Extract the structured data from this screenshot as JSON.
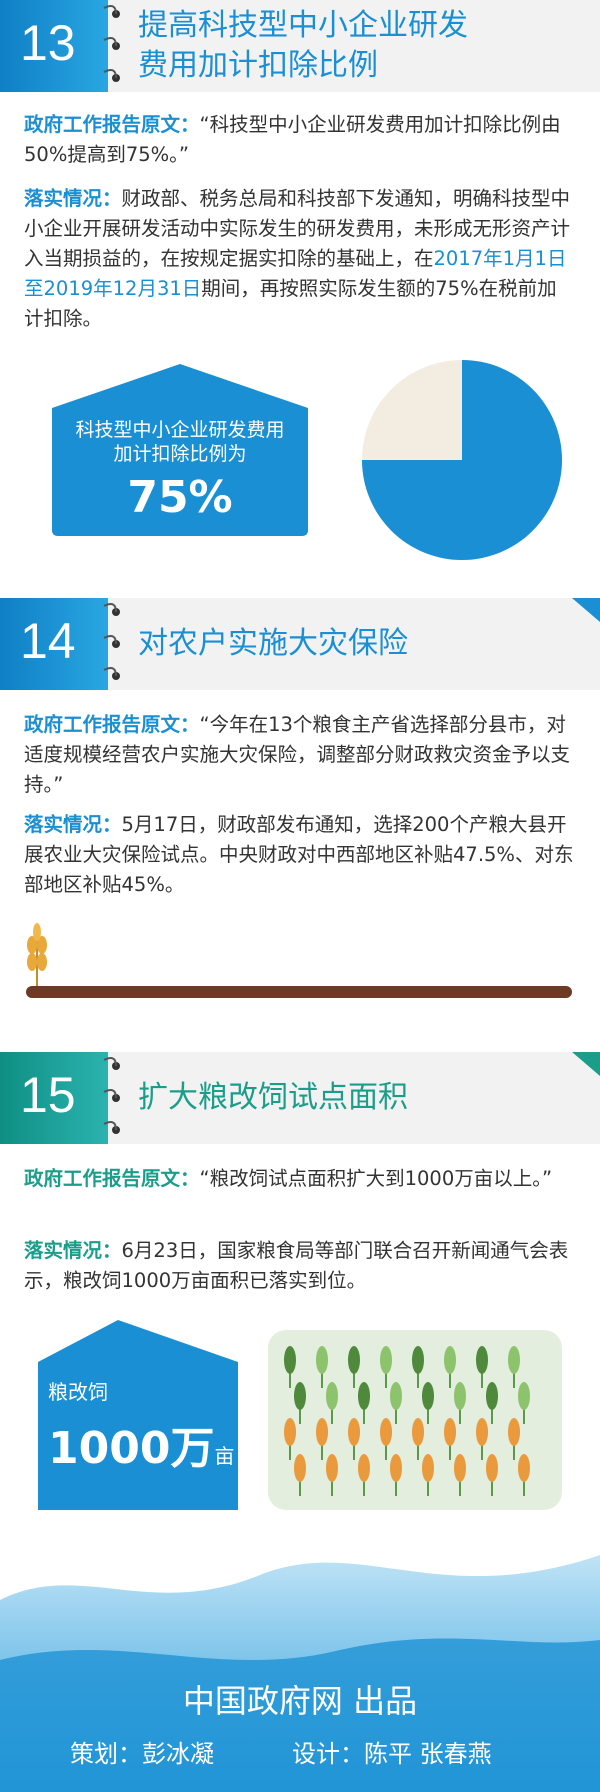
{
  "sections": [
    {
      "number": "13",
      "title_lines": [
        "提高科技型中小企业研发",
        "费用加计扣除比例"
      ],
      "original_label": "政府工作报告原文：",
      "original_text": "“科技型中小企业研发费用加计扣除比例由50%提高到75%。”",
      "status_label": "落实情况：",
      "status_parts": [
        "财政部、税务总局和科技部下发通知，明确科技型中小企业开展研发活动中实际发生的研发费用，未形成无形资产计入当期损益的，在按规定据实扣除的基础上，在",
        "2017年1月1日至2019年12月31日",
        "期间，再按照实际发生额的75%在税前加计扣除。"
      ],
      "stat_caption": [
        "科技型中小企业研发费用",
        "加计扣除比例为"
      ],
      "stat_value_label": "75%",
      "pie": {
        "value": 75,
        "total": 100,
        "color": "#1a8fd3",
        "rest_color": "#f3ede1"
      }
    },
    {
      "number": "14",
      "title_lines": [
        "对农户实施大灾保险"
      ],
      "original_label": "政府工作报告原文：",
      "original_text": "“今年在13个粮食主产省选择部分县市，对适度规模经营农户实施大灾保险，调整部分财政救灾资金予以支持。”",
      "status_label": "落实情况：",
      "status_parts": [
        "5月17日，财政部发布通知，选择200个产粮大县开展农业大灾保险试点。中央财政对中西部地区补贴47.5%、对东部地区补贴45%。"
      ]
    },
    {
      "number": "15",
      "title_lines": [
        "扩大粮改饲试点面积"
      ],
      "original_label": "政府工作报告原文：",
      "original_text": "“粮改饲试点面积扩大到1000万亩以上。”",
      "status_label": "落实情况：",
      "status_parts": [
        "6月23日，国家粮食局等部门联合召开新闻通气会表示，粮改饲1000万亩面积已落实到位。"
      ],
      "stat_caption": [
        "粮改饲"
      ],
      "stat_value_label": "1000万",
      "stat_unit": "亩"
    }
  ],
  "footer": {
    "publisher": "中国政府网 出品",
    "planner": "策划：彭冰凝",
    "designer": "设计：陈平 张春燕"
  }
}
